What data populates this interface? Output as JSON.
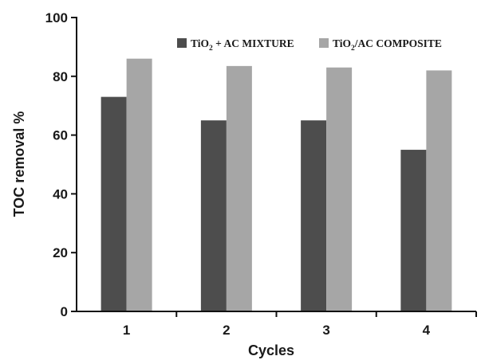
{
  "chart_data": {
    "type": "bar",
    "categories": [
      "1",
      "2",
      "3",
      "4"
    ],
    "series": [
      {
        "name": "TiO₂ + AC MIXTURE",
        "name_parts": [
          "TiO",
          "2",
          " + AC MIXTURE"
        ],
        "color": "#4d4d4d",
        "values": [
          73,
          65,
          65,
          55
        ]
      },
      {
        "name": "TiO₂/AC COMPOSITE",
        "name_parts": [
          "TiO",
          "2",
          "/AC COMPOSITE"
        ],
        "color": "#a6a6a6",
        "values": [
          86,
          83.5,
          83,
          82
        ]
      }
    ],
    "xlabel": "Cycles",
    "ylabel": "TOC removal %",
    "ylim": [
      0,
      100
    ],
    "yticks": [
      0,
      20,
      40,
      60,
      80,
      100
    ],
    "grid": false,
    "legend_position": "top-right"
  }
}
